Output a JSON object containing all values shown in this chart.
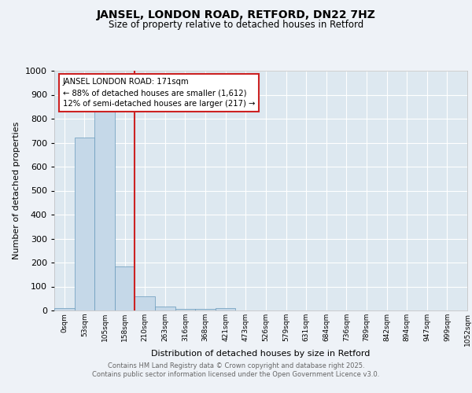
{
  "title1": "JANSEL, LONDON ROAD, RETFORD, DN22 7HZ",
  "title2": "Size of property relative to detached houses in Retford",
  "xlabel": "Distribution of detached houses by size in Retford",
  "ylabel": "Number of detached properties",
  "bin_labels": [
    "0sqm",
    "53sqm",
    "105sqm",
    "158sqm",
    "210sqm",
    "263sqm",
    "316sqm",
    "368sqm",
    "421sqm",
    "473sqm",
    "526sqm",
    "579sqm",
    "631sqm",
    "684sqm",
    "736sqm",
    "789sqm",
    "842sqm",
    "894sqm",
    "947sqm",
    "999sqm",
    "1052sqm"
  ],
  "bar_values": [
    10,
    720,
    840,
    183,
    58,
    18,
    5,
    5,
    10,
    0,
    0,
    0,
    0,
    0,
    0,
    0,
    0,
    0,
    0,
    0
  ],
  "bar_color": "#c5d8e8",
  "bar_edge_color": "#6699bb",
  "ylim": [
    0,
    1000
  ],
  "yticks": [
    0,
    100,
    200,
    300,
    400,
    500,
    600,
    700,
    800,
    900,
    1000
  ],
  "property_line_x": 3.5,
  "property_line_color": "#cc2222",
  "annotation_text": "JANSEL LONDON ROAD: 171sqm\n← 88% of detached houses are smaller (1,612)\n12% of semi-detached houses are larger (217) →",
  "annotation_box_color": "#cc2222",
  "footer_line1": "Contains HM Land Registry data © Crown copyright and database right 2025.",
  "footer_line2": "Contains public sector information licensed under the Open Government Licence v3.0.",
  "background_color": "#eef2f7",
  "plot_bg_color": "#dde8f0",
  "grid_color": "#ffffff",
  "title_color": "#000000",
  "footer_color": "#666666"
}
